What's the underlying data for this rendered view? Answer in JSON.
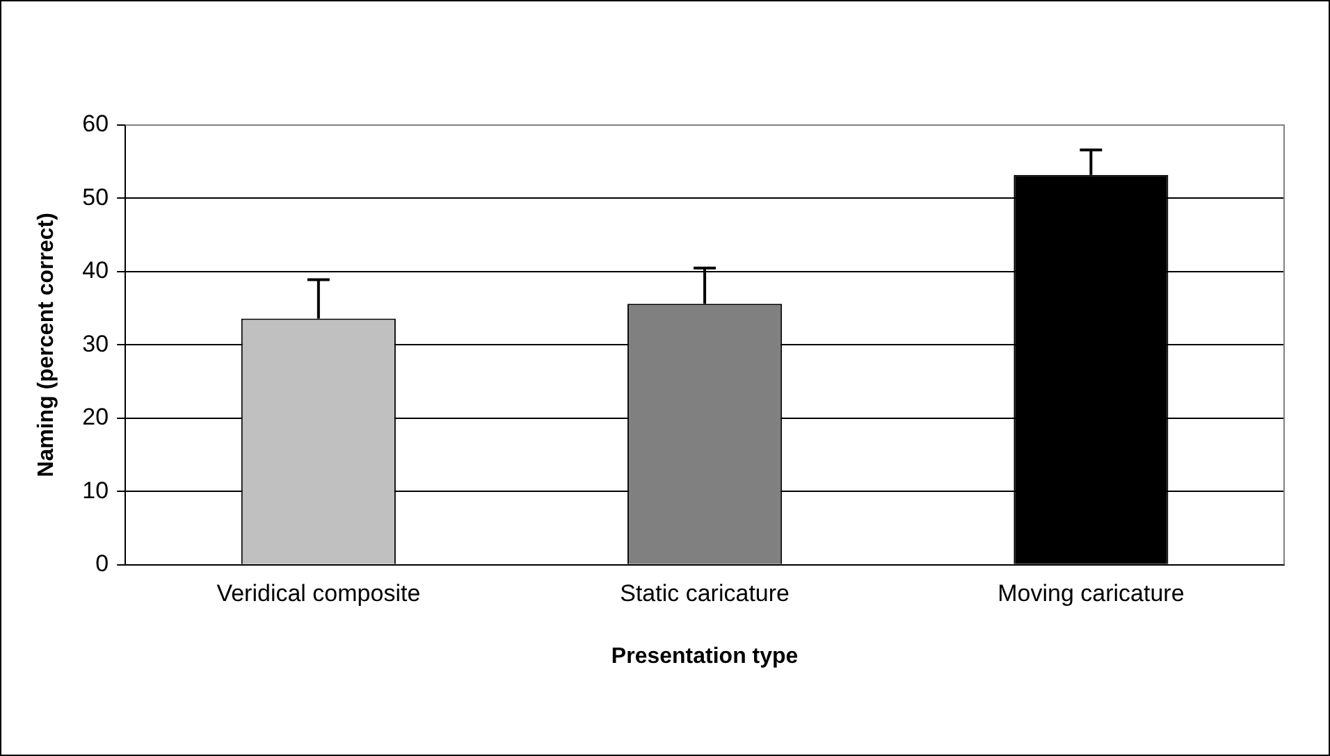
{
  "chart_data": {
    "type": "bar",
    "xlabel": "Presentation type",
    "ylabel": "Naming (percent correct)",
    "categories": [
      "Veridical composite",
      "Static caricature",
      "Moving caricature"
    ],
    "values": [
      33.6,
      35.6,
      53.2
    ],
    "colors": [
      "#c0c0c0",
      "#808080",
      "#000000"
    ],
    "errors": [
      [
        33.6,
        38.9
      ],
      [
        35.6,
        40.5
      ],
      [
        53.2,
        56.6
      ]
    ],
    "ylim": [
      0,
      60
    ],
    "yticks": [
      0,
      10,
      20,
      30,
      40,
      50,
      60
    ],
    "grid": "y",
    "legend": false
  }
}
